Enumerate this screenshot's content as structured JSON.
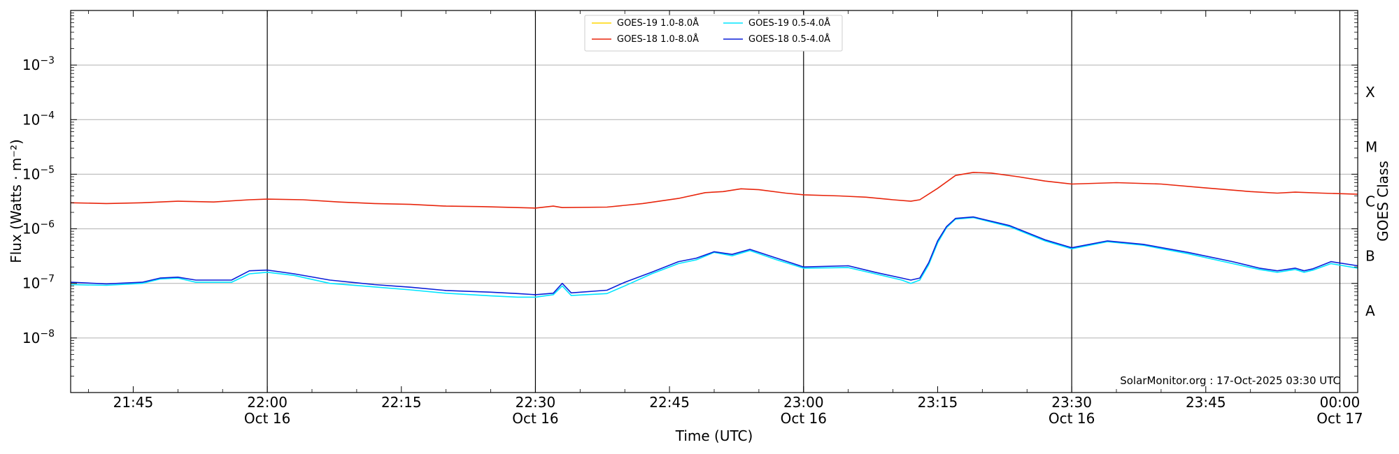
{
  "chart_data": {
    "type": "line",
    "xlabel": "Time (UTC)",
    "ylabel": "Flux (Watts · m⁻²)",
    "right_label": "GOES Class",
    "yscale": "log",
    "ylim": [
      1e-09,
      0.01
    ],
    "xlim": [
      "2025-10-16T21:38",
      "2025-10-17T00:02"
    ],
    "grid": "horizontal at decades",
    "legend_position": "top-center",
    "x_ticks": [
      {
        "time": "2025-10-16T21:45",
        "label": "21:45",
        "sublabel": ""
      },
      {
        "time": "2025-10-16T22:00",
        "label": "22:00",
        "sublabel": "Oct 16"
      },
      {
        "time": "2025-10-16T22:15",
        "label": "22:15",
        "sublabel": ""
      },
      {
        "time": "2025-10-16T22:30",
        "label": "22:30",
        "sublabel": "Oct 16"
      },
      {
        "time": "2025-10-16T22:45",
        "label": "22:45",
        "sublabel": ""
      },
      {
        "time": "2025-10-16T23:00",
        "label": "23:00",
        "sublabel": "Oct 16"
      },
      {
        "time": "2025-10-16T23:15",
        "label": "23:15",
        "sublabel": ""
      },
      {
        "time": "2025-10-16T23:30",
        "label": "23:30",
        "sublabel": "Oct 16"
      },
      {
        "time": "2025-10-16T23:45",
        "label": "23:45",
        "sublabel": ""
      },
      {
        "time": "2025-10-17T00:00",
        "label": "00:00",
        "sublabel": "Oct 17"
      }
    ],
    "day_marker_times": [
      "2025-10-16T22:00",
      "2025-10-16T22:30",
      "2025-10-16T23:00",
      "2025-10-16T23:30",
      "2025-10-17T00:00"
    ],
    "y_ticks": [
      {
        "exp": -8,
        "label": "10",
        "sup": "−8"
      },
      {
        "exp": -7,
        "label": "10",
        "sup": "−7"
      },
      {
        "exp": -6,
        "label": "10",
        "sup": "−6"
      },
      {
        "exp": -5,
        "label": "10",
        "sup": "−5"
      },
      {
        "exp": -4,
        "label": "10",
        "sup": "−4"
      },
      {
        "exp": -3,
        "label": "10",
        "sup": "−3"
      }
    ],
    "goes_classes": [
      {
        "label": "A",
        "flux": 3.16e-08
      },
      {
        "label": "B",
        "flux": 3.16e-07
      },
      {
        "label": "C",
        "flux": 3.16e-06
      },
      {
        "label": "M",
        "flux": 3.16e-05
      },
      {
        "label": "X",
        "flux": 0.000316
      }
    ],
    "series": [
      {
        "name": "GOES-19 1.0-8.0Å",
        "color": "#ffd700",
        "x": [],
        "values": []
      },
      {
        "name": "GOES-18 1.0-8.0Å",
        "color": "#e8250c",
        "x": [
          "2025-10-16T21:38",
          "2025-10-16T21:42",
          "2025-10-16T21:46",
          "2025-10-16T21:50",
          "2025-10-16T21:54",
          "2025-10-16T21:58",
          "2025-10-16T22:00",
          "2025-10-16T22:04",
          "2025-10-16T22:08",
          "2025-10-16T22:12",
          "2025-10-16T22:16",
          "2025-10-16T22:20",
          "2025-10-16T22:24",
          "2025-10-16T22:28",
          "2025-10-16T22:30",
          "2025-10-16T22:32",
          "2025-10-16T22:33",
          "2025-10-16T22:38",
          "2025-10-16T22:42",
          "2025-10-16T22:46",
          "2025-10-16T22:49",
          "2025-10-16T22:51",
          "2025-10-16T22:53",
          "2025-10-16T22:55",
          "2025-10-16T22:58",
          "2025-10-16T23:00",
          "2025-10-16T23:04",
          "2025-10-16T23:07",
          "2025-10-16T23:10",
          "2025-10-16T23:12",
          "2025-10-16T23:13",
          "2025-10-16T23:15",
          "2025-10-16T23:17",
          "2025-10-16T23:19",
          "2025-10-16T23:21",
          "2025-10-16T23:24",
          "2025-10-16T23:27",
          "2025-10-16T23:30",
          "2025-10-16T23:35",
          "2025-10-16T23:40",
          "2025-10-16T23:45",
          "2025-10-16T23:50",
          "2025-10-16T23:53",
          "2025-10-16T23:55",
          "2025-10-16T23:58",
          "2025-10-17T00:02"
        ],
        "values": [
          3e-06,
          2.9e-06,
          3e-06,
          3.2e-06,
          3.1e-06,
          3.4e-06,
          3.5e-06,
          3.4e-06,
          3.1e-06,
          2.9e-06,
          2.8e-06,
          2.6e-06,
          2.55e-06,
          2.45e-06,
          2.4e-06,
          2.6e-06,
          2.45e-06,
          2.5e-06,
          2.9e-06,
          3.6e-06,
          4.6e-06,
          4.8e-06,
          5.4e-06,
          5.2e-06,
          4.5e-06,
          4.2e-06,
          4e-06,
          3.8e-06,
          3.4e-06,
          3.2e-06,
          3.4e-06,
          5.5e-06,
          9.5e-06,
          1.08e-05,
          1.05e-05,
          9e-06,
          7.5e-06,
          6.6e-06,
          7e-06,
          6.6e-06,
          5.6e-06,
          4.8e-06,
          4.5e-06,
          4.7e-06,
          4.5e-06,
          4.3e-06
        ]
      },
      {
        "name": "GOES-19 0.5-4.0Å",
        "color": "#00e5ff",
        "x": [
          "2025-10-16T21:38",
          "2025-10-16T21:42",
          "2025-10-16T21:46",
          "2025-10-16T21:48",
          "2025-10-16T21:50",
          "2025-10-16T21:52",
          "2025-10-16T21:56",
          "2025-10-16T21:58",
          "2025-10-16T22:00",
          "2025-10-16T22:03",
          "2025-10-16T22:07",
          "2025-10-16T22:12",
          "2025-10-16T22:16",
          "2025-10-16T22:20",
          "2025-10-16T22:25",
          "2025-10-16T22:28",
          "2025-10-16T22:30",
          "2025-10-16T22:32",
          "2025-10-16T22:33",
          "2025-10-16T22:34",
          "2025-10-16T22:38",
          "2025-10-16T22:40",
          "2025-10-16T22:43",
          "2025-10-16T22:46",
          "2025-10-16T22:48",
          "2025-10-16T22:50",
          "2025-10-16T22:52",
          "2025-10-16T22:54",
          "2025-10-16T22:57",
          "2025-10-16T23:00",
          "2025-10-16T23:05",
          "2025-10-16T23:08",
          "2025-10-16T23:11",
          "2025-10-16T23:12",
          "2025-10-16T23:13",
          "2025-10-16T23:14",
          "2025-10-16T23:15",
          "2025-10-16T23:16",
          "2025-10-16T23:17",
          "2025-10-16T23:19",
          "2025-10-16T23:23",
          "2025-10-16T23:27",
          "2025-10-16T23:30",
          "2025-10-16T23:34",
          "2025-10-16T23:38",
          "2025-10-16T23:43",
          "2025-10-16T23:48",
          "2025-10-16T23:51",
          "2025-10-16T23:53",
          "2025-10-16T23:55",
          "2025-10-16T23:56",
          "2025-10-16T23:57",
          "2025-10-16T23:59",
          "2025-10-17T00:02"
        ],
        "values": [
          9.5e-08,
          9.2e-08,
          1e-07,
          1.2e-07,
          1.25e-07,
          1.05e-07,
          1.05e-07,
          1.5e-07,
          1.6e-07,
          1.4e-07,
          1e-07,
          8.6e-08,
          7.6e-08,
          6.6e-08,
          5.9e-08,
          5.6e-08,
          5.6e-08,
          6.2e-08,
          9e-08,
          6e-08,
          6.5e-08,
          9e-08,
          1.5e-07,
          2.3e-07,
          2.7e-07,
          3.7e-07,
          3.2e-07,
          4e-07,
          2.7e-07,
          1.9e-07,
          1.95e-07,
          1.5e-07,
          1.15e-07,
          1e-07,
          1.15e-07,
          2.2e-07,
          5.5e-07,
          1.05e-06,
          1.5e-06,
          1.6e-06,
          1.1e-06,
          6e-07,
          4.3e-07,
          5.8e-07,
          5e-07,
          3.5e-07,
          2.3e-07,
          1.8e-07,
          1.6e-07,
          1.8e-07,
          1.6e-07,
          1.75e-07,
          2.3e-07,
          1.9e-07
        ]
      },
      {
        "name": "GOES-18 0.5-4.0Å",
        "color": "#0a1fd9",
        "x": [
          "2025-10-16T21:38",
          "2025-10-16T21:42",
          "2025-10-16T21:46",
          "2025-10-16T21:48",
          "2025-10-16T21:50",
          "2025-10-16T21:52",
          "2025-10-16T21:56",
          "2025-10-16T21:58",
          "2025-10-16T22:00",
          "2025-10-16T22:03",
          "2025-10-16T22:07",
          "2025-10-16T22:12",
          "2025-10-16T22:16",
          "2025-10-16T22:20",
          "2025-10-16T22:25",
          "2025-10-16T22:28",
          "2025-10-16T22:30",
          "2025-10-16T22:32",
          "2025-10-16T22:33",
          "2025-10-16T22:34",
          "2025-10-16T22:38",
          "2025-10-16T22:40",
          "2025-10-16T22:43",
          "2025-10-16T22:46",
          "2025-10-16T22:48",
          "2025-10-16T22:50",
          "2025-10-16T22:52",
          "2025-10-16T22:54",
          "2025-10-16T22:57",
          "2025-10-16T23:00",
          "2025-10-16T23:05",
          "2025-10-16T23:08",
          "2025-10-16T23:11",
          "2025-10-16T23:12",
          "2025-10-16T23:13",
          "2025-10-16T23:14",
          "2025-10-16T23:15",
          "2025-10-16T23:16",
          "2025-10-16T23:17",
          "2025-10-16T23:19",
          "2025-10-16T23:23",
          "2025-10-16T23:27",
          "2025-10-16T23:30",
          "2025-10-16T23:34",
          "2025-10-16T23:38",
          "2025-10-16T23:43",
          "2025-10-16T23:48",
          "2025-10-16T23:51",
          "2025-10-16T23:53",
          "2025-10-16T23:55",
          "2025-10-16T23:56",
          "2025-10-16T23:57",
          "2025-10-16T23:59",
          "2025-10-17T00:02"
        ],
        "values": [
          1.05e-07,
          9.8e-08,
          1.05e-07,
          1.25e-07,
          1.3e-07,
          1.15e-07,
          1.15e-07,
          1.7e-07,
          1.75e-07,
          1.5e-07,
          1.15e-07,
          9.5e-08,
          8.5e-08,
          7.4e-08,
          6.9e-08,
          6.5e-08,
          6.2e-08,
          6.6e-08,
          1e-07,
          6.7e-08,
          7.5e-08,
          1.05e-07,
          1.6e-07,
          2.5e-07,
          2.9e-07,
          3.8e-07,
          3.4e-07,
          4.2e-07,
          2.9e-07,
          2e-07,
          2.1e-07,
          1.6e-07,
          1.25e-07,
          1.15e-07,
          1.25e-07,
          2.4e-07,
          6e-07,
          1.1e-06,
          1.55e-06,
          1.65e-06,
          1.15e-06,
          6.3e-07,
          4.5e-07,
          6e-07,
          5.2e-07,
          3.7e-07,
          2.5e-07,
          1.9e-07,
          1.7e-07,
          1.9e-07,
          1.7e-07,
          1.85e-07,
          2.5e-07,
          2.1e-07
        ]
      }
    ]
  },
  "annotation": "SolarMonitor.org : 17-Oct-2025 03:30 UTC"
}
